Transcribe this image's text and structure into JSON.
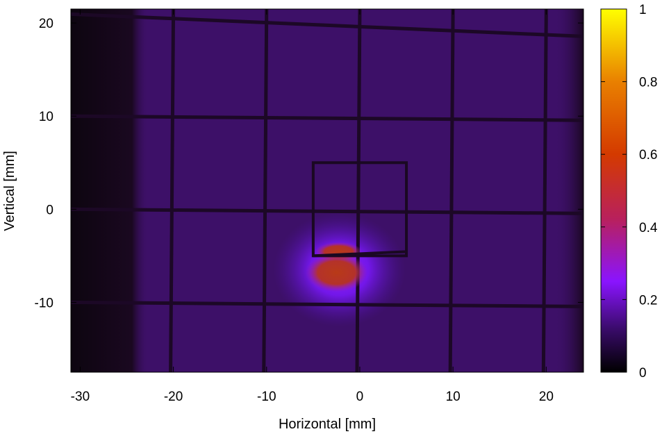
{
  "chart_data": {
    "type": "heatmap",
    "title": "",
    "xlabel": "Horizontal [mm]",
    "ylabel": "Vertical [mm]",
    "xlim": [
      -31,
      24
    ],
    "ylim": [
      -17.5,
      21.5
    ],
    "xticks": [
      -30,
      -20,
      -10,
      0,
      10,
      20
    ],
    "yticks": [
      -10,
      0,
      10,
      20
    ],
    "colorbar": {
      "min": 0,
      "max": 1,
      "ticks": [
        0,
        0.2,
        0.4,
        0.6,
        0.8,
        1
      ],
      "tick_labels": [
        "0",
        "0.2",
        "0.4",
        "0.6",
        "0.8",
        "1"
      ],
      "colormap": [
        "#000000",
        "#3a0b6b",
        "#8a14ff",
        "#b8205e",
        "#d43a00",
        "#e98000",
        "#ffd400",
        "#ffff00"
      ]
    },
    "background_intensity": 0.1,
    "dark_region": {
      "x_from": -31,
      "x_to": -24,
      "intensity": 0.02
    },
    "grid_wires": {
      "horizontal_y_mm": [
        20.5,
        10,
        0,
        -10
      ],
      "vertical_x_mm": [
        -20,
        -10,
        0,
        10,
        20
      ]
    },
    "inner_box_mm": {
      "x": [
        -5,
        5
      ],
      "y": [
        -5,
        5
      ]
    },
    "hotspot": {
      "center_x_mm": -2.5,
      "center_y_mm": -6.5,
      "peak_intensity": 0.58
    }
  }
}
